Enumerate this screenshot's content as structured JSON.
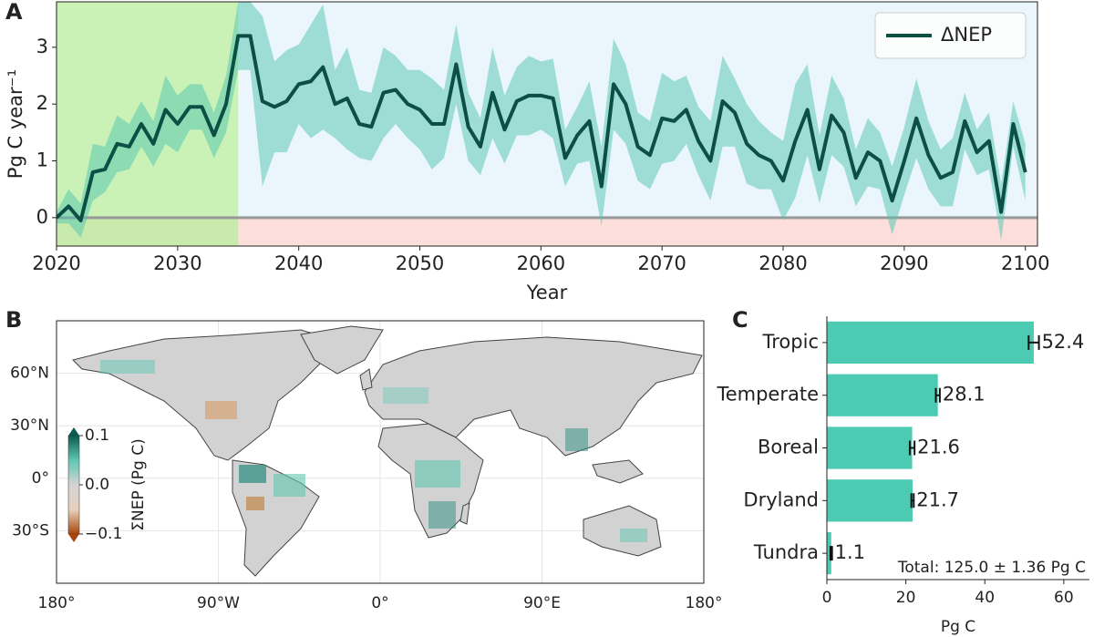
{
  "chart_data": [
    {
      "type": "line",
      "panel": "A",
      "ylabel": "Pg C year⁻¹",
      "xlabel": "Year",
      "x": [
        2020,
        2021,
        2022,
        2023,
        2024,
        2025,
        2026,
        2027,
        2028,
        2029,
        2030,
        2031,
        2032,
        2033,
        2034,
        2035,
        2036,
        2037,
        2038,
        2039,
        2040,
        2041,
        2042,
        2043,
        2044,
        2045,
        2046,
        2047,
        2048,
        2049,
        2050,
        2051,
        2052,
        2053,
        2054,
        2055,
        2056,
        2057,
        2058,
        2059,
        2060,
        2061,
        2062,
        2063,
        2064,
        2065,
        2066,
        2067,
        2068,
        2069,
        2070,
        2071,
        2072,
        2073,
        2074,
        2075,
        2076,
        2077,
        2078,
        2079,
        2080,
        2081,
        2082,
        2083,
        2084,
        2085,
        2086,
        2087,
        2088,
        2089,
        2090,
        2091,
        2092,
        2093,
        2094,
        2095,
        2096,
        2097,
        2098,
        2099,
        2100
      ],
      "series": [
        {
          "name": "ΔNEP",
          "color": "#0b4f45",
          "band_color": "#4fc4b0",
          "values": [
            0.0,
            0.2,
            -0.05,
            0.8,
            0.85,
            1.3,
            1.25,
            1.65,
            1.3,
            1.9,
            1.65,
            1.95,
            1.95,
            1.45,
            2.0,
            3.2,
            3.2,
            2.05,
            1.95,
            2.05,
            2.35,
            2.4,
            2.65,
            2.0,
            2.1,
            1.65,
            1.6,
            2.2,
            2.25,
            2.0,
            1.9,
            1.65,
            1.65,
            2.7,
            1.6,
            1.25,
            2.2,
            1.55,
            2.05,
            2.15,
            2.15,
            2.1,
            1.05,
            1.45,
            1.7,
            0.55,
            2.35,
            2.0,
            1.25,
            1.1,
            1.75,
            1.7,
            1.9,
            1.35,
            1.0,
            2.05,
            1.85,
            1.3,
            1.1,
            1.0,
            0.65,
            1.35,
            1.9,
            0.85,
            1.8,
            1.5,
            0.7,
            1.15,
            1.0,
            0.3,
            1.0,
            1.75,
            1.1,
            0.7,
            0.8,
            1.7,
            1.15,
            1.35,
            0.1,
            1.65,
            0.8
          ],
          "errors": [
            0.1,
            0.3,
            0.3,
            0.5,
            0.4,
            0.5,
            0.4,
            0.4,
            0.4,
            0.6,
            0.5,
            0.4,
            0.4,
            0.4,
            0.5,
            0.6,
            0.6,
            1.5,
            0.8,
            0.9,
            0.7,
            1.0,
            1.1,
            0.6,
            0.9,
            0.6,
            0.6,
            0.8,
            0.6,
            0.6,
            0.7,
            0.8,
            0.6,
            0.7,
            0.6,
            0.5,
            0.8,
            0.6,
            0.6,
            0.7,
            0.6,
            0.7,
            0.5,
            0.5,
            0.7,
            0.7,
            0.8,
            0.7,
            0.6,
            0.6,
            0.8,
            0.7,
            0.6,
            0.6,
            0.7,
            0.8,
            0.6,
            0.7,
            0.6,
            0.5,
            0.7,
            1.0,
            0.8,
            0.6,
            0.7,
            0.6,
            0.5,
            0.6,
            0.5,
            0.6,
            0.6,
            0.7,
            0.6,
            0.5,
            0.6,
            0.5,
            0.4,
            0.5,
            0.5,
            0.4,
            0.5
          ]
        }
      ],
      "shaded_regions": [
        {
          "x": [
            2020,
            2101
          ],
          "y": [
            -0.5,
            0
          ],
          "color": "#fbd3cf"
        },
        {
          "x": [
            2035,
            2101
          ],
          "y": [
            0,
            3.8
          ],
          "color": "#e3f3fa"
        },
        {
          "x": [
            2020,
            2035
          ],
          "y": [
            -0.5,
            3.8
          ],
          "color": "#b8ee9e"
        }
      ],
      "hline": 0,
      "xlim": [
        2020,
        2101
      ],
      "xticks": [
        2020,
        2030,
        2040,
        2050,
        2060,
        2070,
        2080,
        2090,
        2100
      ],
      "ylim": [
        -0.5,
        3.8
      ],
      "yticks": [
        0,
        1,
        2,
        3
      ],
      "legend": "upper right"
    },
    {
      "type": "map",
      "panel": "B",
      "xlim": [
        -180,
        180
      ],
      "xticks": [
        {
          "value": -180,
          "label": "180°"
        },
        {
          "value": -90,
          "label": "90°W"
        },
        {
          "value": 0,
          "label": "0°"
        },
        {
          "value": 90,
          "label": "90°E"
        },
        {
          "value": 180,
          "label": "180°"
        }
      ],
      "ylim": [
        -60,
        90
      ],
      "yticks": [
        {
          "value": 60,
          "label": "60°N"
        },
        {
          "value": 30,
          "label": "30°N"
        },
        {
          "value": 0,
          "label": "0°"
        },
        {
          "value": -30,
          "label": "30°S"
        }
      ],
      "colorbar": {
        "label": "ΣNEP (Pg C)",
        "lim": [
          -0.1,
          0.1
        ],
        "colors": [
          "#a8470a",
          "#e8d0bd",
          "#d4d4d4",
          "#5fc7b3",
          "#0b5a4e"
        ],
        "ticks": [
          0.1,
          {
            "value": 0,
            "label": "0.0"
          },
          {
            "value": -0.1,
            "label": "−0.1"
          }
        ]
      }
    },
    {
      "type": "barh",
      "panel": "C",
      "xlabel": "Pg C",
      "color": "#4ccbb2",
      "categories": [
        "Tropic",
        "Temperate",
        "Boreal",
        "Dryland",
        "Tundra"
      ],
      "values": [
        52.4,
        28.1,
        21.6,
        21.7,
        1.1
      ],
      "errors": [
        1.3,
        0.5,
        0.6,
        0.3,
        0.2
      ],
      "xlim": [
        0,
        66.5
      ],
      "xticks": [
        0,
        20,
        40,
        60
      ],
      "annotation": "Total: 125.0 ± 1.36 Pg C"
    }
  ]
}
